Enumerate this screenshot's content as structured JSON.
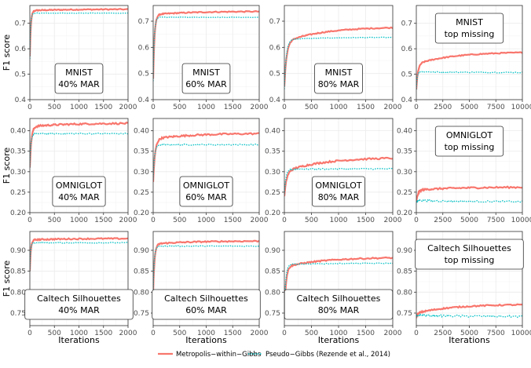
{
  "figure": {
    "ylabel": "F1 score",
    "xlabel": "Iterations",
    "legend": {
      "position": "bottom",
      "entries": [
        {
          "name": "Metropolis−within−Gibbs",
          "color": "#F8766D",
          "style": "solid"
        },
        {
          "name": "Pseudo−Gibbs (Rezende et al., 2014)",
          "color": "#00BFC4",
          "style": "dotted"
        }
      ]
    },
    "colors": {
      "mwg": "#F8766D",
      "pg": "#00BFC4",
      "panel_border": "#333333",
      "grid": "#ebebeb"
    }
  },
  "chart_data": [
    {
      "type": "line",
      "label": [
        "MNIST",
        "40% MAR"
      ],
      "row": 0,
      "col": 0,
      "xlim": [
        0,
        2000
      ],
      "xticks": [
        0,
        500,
        1000,
        1500,
        2000
      ],
      "xticklabels": [
        "0",
        "500",
        "1000",
        "1500",
        "2000"
      ],
      "ylim": [
        0.4,
        0.77
      ],
      "yticks": [
        0.4,
        0.5,
        0.6,
        0.7
      ],
      "yticklabels": [
        "0.4",
        "0.5",
        "0.6",
        "0.7"
      ],
      "series": [
        {
          "name": "Metropolis−within−Gibbs",
          "start": 0.57,
          "plateau": 0.75,
          "final": 0.755,
          "tau": 20,
          "noise": 0.002,
          "steps": 100
        },
        {
          "name": "Pseudo−Gibbs (Rezende et al., 2014)",
          "start": 0.56,
          "plateau": 0.74,
          "final": 0.74,
          "tau": 15,
          "noise": 0.001,
          "steps": 100
        }
      ]
    },
    {
      "type": "line",
      "label": [
        "MNIST",
        "60% MAR"
      ],
      "row": 0,
      "col": 1,
      "xlim": [
        0,
        2000
      ],
      "xticks": [
        0,
        500,
        1000,
        1500,
        2000
      ],
      "xticklabels": [
        "0",
        "500",
        "1000",
        "1500",
        "2000"
      ],
      "ylim": [
        0.4,
        0.76
      ],
      "yticks": [
        0.4,
        0.5,
        0.6,
        0.7
      ],
      "yticklabels": [
        "0.4",
        "0.5",
        "0.6",
        "0.7"
      ],
      "series": [
        {
          "name": "Metropolis−within−Gibbs",
          "start": 0.48,
          "plateau": 0.725,
          "final": 0.737,
          "tau": 25,
          "noise": 0.002,
          "steps": 100
        },
        {
          "name": "Pseudo−Gibbs (Rezende et al., 2014)",
          "start": 0.47,
          "plateau": 0.715,
          "final": 0.715,
          "tau": 20,
          "noise": 0.001,
          "steps": 100
        }
      ]
    },
    {
      "type": "line",
      "label": [
        "MNIST",
        "80% MAR"
      ],
      "row": 0,
      "col": 2,
      "xlim": [
        0,
        2000
      ],
      "xticks": [
        0,
        500,
        1000,
        1500,
        2000
      ],
      "xticklabels": [
        "0",
        "500",
        "1000",
        "1500",
        "2000"
      ],
      "ylim": [
        0.4,
        0.76
      ],
      "yticks": [
        0.4,
        0.5,
        0.6,
        0.7
      ],
      "yticklabels": [
        "0.4",
        "0.5",
        "0.6",
        "0.7"
      ],
      "series": [
        {
          "name": "Metropolis−within−Gibbs",
          "start": 0.45,
          "plateau": 0.62,
          "final": 0.675,
          "tau": 40,
          "noise": 0.002,
          "steps": 100
        },
        {
          "name": "Pseudo−Gibbs (Rezende et al., 2014)",
          "start": 0.44,
          "plateau": 0.63,
          "final": 0.638,
          "tau": 35,
          "noise": 0.001,
          "steps": 100
        }
      ]
    },
    {
      "type": "line",
      "label": [
        "MNIST",
        "top missing"
      ],
      "row": 0,
      "col": 3,
      "xlim": [
        0,
        10000
      ],
      "xticks": [
        0,
        2500,
        5000,
        7500,
        10000
      ],
      "xticklabels": [
        "0",
        "2500",
        "5000",
        "7500",
        "10000"
      ],
      "ylim": [
        0.4,
        0.77
      ],
      "yticks": [
        0.4,
        0.5,
        0.6,
        0.7
      ],
      "yticklabels": [
        "0.4",
        "0.5",
        "0.6",
        "0.7"
      ],
      "series": [
        {
          "name": "Metropolis−within−Gibbs",
          "start": 0.44,
          "plateau": 0.54,
          "final": 0.585,
          "tau": 150,
          "noise": 0.002,
          "steps": 100
        },
        {
          "name": "Pseudo−Gibbs (Rezende et al., 2014)",
          "start": 0.44,
          "plateau": 0.51,
          "final": 0.507,
          "tau": 80,
          "noise": 0.002,
          "steps": 100
        }
      ]
    },
    {
      "type": "line",
      "label": [
        "OMNIGLOT",
        "40% MAR"
      ],
      "row": 1,
      "col": 0,
      "xlim": [
        0,
        2000
      ],
      "xticks": [
        0,
        500,
        1000,
        1500,
        2000
      ],
      "xticklabels": [
        "0",
        "500",
        "1000",
        "1500",
        "2000"
      ],
      "ylim": [
        0.2,
        0.43
      ],
      "yticks": [
        0.2,
        0.25,
        0.3,
        0.35,
        0.4
      ],
      "yticklabels": [
        "0.20",
        "0.25",
        "0.30",
        "0.35",
        "0.40"
      ],
      "series": [
        {
          "name": "Metropolis−within−Gibbs",
          "start": 0.31,
          "plateau": 0.41,
          "final": 0.418,
          "tau": 30,
          "noise": 0.002,
          "steps": 100
        },
        {
          "name": "Pseudo−Gibbs (Rezende et al., 2014)",
          "start": 0.31,
          "plateau": 0.393,
          "final": 0.393,
          "tau": 20,
          "noise": 0.0015,
          "steps": 100
        }
      ]
    },
    {
      "type": "line",
      "label": [
        "OMNIGLOT",
        "60% MAR"
      ],
      "row": 1,
      "col": 1,
      "xlim": [
        0,
        2000
      ],
      "xticks": [
        0,
        500,
        1000,
        1500,
        2000
      ],
      "xticklabels": [
        "0",
        "500",
        "1000",
        "1500",
        "2000"
      ],
      "ylim": [
        0.2,
        0.43
      ],
      "yticks": [
        0.2,
        0.25,
        0.3,
        0.35,
        0.4
      ],
      "yticklabels": [
        "0.20",
        "0.25",
        "0.30",
        "0.35",
        "0.40"
      ],
      "series": [
        {
          "name": "Metropolis−within−Gibbs",
          "start": 0.275,
          "plateau": 0.38,
          "final": 0.393,
          "tau": 35,
          "noise": 0.002,
          "steps": 100
        },
        {
          "name": "Pseudo−Gibbs (Rezende et al., 2014)",
          "start": 0.28,
          "plateau": 0.366,
          "final": 0.366,
          "tau": 25,
          "noise": 0.0015,
          "steps": 100
        }
      ]
    },
    {
      "type": "line",
      "label": [
        "OMNIGLOT",
        "80% MAR"
      ],
      "row": 1,
      "col": 2,
      "xlim": [
        0,
        2000
      ],
      "xticks": [
        0,
        500,
        1000,
        1500,
        2000
      ],
      "xticklabels": [
        "0",
        "500",
        "1000",
        "1500",
        "2000"
      ],
      "ylim": [
        0.2,
        0.43
      ],
      "yticks": [
        0.2,
        0.25,
        0.3,
        0.35,
        0.4
      ],
      "yticklabels": [
        "0.20",
        "0.25",
        "0.30",
        "0.35",
        "0.40"
      ],
      "series": [
        {
          "name": "Metropolis−within−Gibbs",
          "start": 0.24,
          "plateau": 0.3,
          "final": 0.333,
          "tau": 40,
          "noise": 0.002,
          "steps": 100
        },
        {
          "name": "Pseudo−Gibbs (Rezende et al., 2014)",
          "start": 0.245,
          "plateau": 0.306,
          "final": 0.307,
          "tau": 30,
          "noise": 0.0015,
          "steps": 100
        }
      ]
    },
    {
      "type": "line",
      "label": [
        "OMNIGLOT",
        "top missing"
      ],
      "row": 1,
      "col": 3,
      "xlim": [
        0,
        10000
      ],
      "xticks": [
        0,
        2500,
        5000,
        7500,
        10000
      ],
      "xticklabels": [
        "0",
        "2500",
        "5000",
        "7500",
        "10000"
      ],
      "ylim": [
        0.2,
        0.43
      ],
      "yticks": [
        0.2,
        0.25,
        0.3,
        0.35,
        0.4
      ],
      "yticklabels": [
        "0.20",
        "0.25",
        "0.30",
        "0.35",
        "0.40"
      ],
      "series": [
        {
          "name": "Metropolis−within−Gibbs",
          "start": 0.225,
          "plateau": 0.255,
          "final": 0.262,
          "tau": 150,
          "noise": 0.002,
          "steps": 100
        },
        {
          "name": "Pseudo−Gibbs (Rezende et al., 2014)",
          "start": 0.225,
          "plateau": 0.23,
          "final": 0.227,
          "tau": 100,
          "noise": 0.002,
          "steps": 100
        }
      ]
    },
    {
      "type": "line",
      "label": [
        "Caltech Silhouettes",
        "40% MAR"
      ],
      "row": 2,
      "col": 0,
      "xlim": [
        0,
        2000
      ],
      "xticks": [
        0,
        500,
        1000,
        1500,
        2000
      ],
      "xticklabels": [
        "0",
        "500",
        "1000",
        "1500",
        "2000"
      ],
      "ylim": [
        0.72,
        0.945
      ],
      "yticks": [
        0.75,
        0.8,
        0.85,
        0.9
      ],
      "yticklabels": [
        "0.75",
        "0.80",
        "0.85",
        "0.90"
      ],
      "series": [
        {
          "name": "Metropolis−within−Gibbs",
          "start": 0.85,
          "plateau": 0.925,
          "final": 0.928,
          "tau": 20,
          "noise": 0.0015,
          "steps": 100
        },
        {
          "name": "Pseudo−Gibbs (Rezende et al., 2014)",
          "start": 0.85,
          "plateau": 0.918,
          "final": 0.918,
          "tau": 15,
          "noise": 0.001,
          "steps": 100
        }
      ]
    },
    {
      "type": "line",
      "label": [
        "Caltech Silhouettes",
        "60% MAR"
      ],
      "row": 2,
      "col": 1,
      "xlim": [
        0,
        2000
      ],
      "xticks": [
        0,
        500,
        1000,
        1500,
        2000
      ],
      "xticklabels": [
        "0",
        "500",
        "1000",
        "1500",
        "2000"
      ],
      "ylim": [
        0.72,
        0.945
      ],
      "yticks": [
        0.75,
        0.8,
        0.85,
        0.9
      ],
      "yticklabels": [
        "0.75",
        "0.80",
        "0.85",
        "0.90"
      ],
      "series": [
        {
          "name": "Metropolis−within−Gibbs",
          "start": 0.8,
          "plateau": 0.915,
          "final": 0.922,
          "tau": 25,
          "noise": 0.0015,
          "steps": 100
        },
        {
          "name": "Pseudo−Gibbs (Rezende et al., 2014)",
          "start": 0.8,
          "plateau": 0.91,
          "final": 0.91,
          "tau": 20,
          "noise": 0.001,
          "steps": 100
        }
      ]
    },
    {
      "type": "line",
      "label": [
        "Caltech Silhouettes",
        "80% MAR"
      ],
      "row": 2,
      "col": 2,
      "xlim": [
        0,
        2000
      ],
      "xticks": [
        0,
        500,
        1000,
        1500,
        2000
      ],
      "xticklabels": [
        "0",
        "500",
        "1000",
        "1500",
        "2000"
      ],
      "ylim": [
        0.72,
        0.945
      ],
      "yticks": [
        0.75,
        0.8,
        0.85,
        0.9
      ],
      "yticklabels": [
        "0.75",
        "0.80",
        "0.85",
        "0.90"
      ],
      "series": [
        {
          "name": "Metropolis−within−Gibbs",
          "start": 0.75,
          "plateau": 0.86,
          "final": 0.882,
          "tau": 30,
          "noise": 0.0015,
          "steps": 100
        },
        {
          "name": "Pseudo−Gibbs (Rezende et al., 2014)",
          "start": 0.75,
          "plateau": 0.866,
          "final": 0.869,
          "tau": 25,
          "noise": 0.001,
          "steps": 100
        }
      ]
    },
    {
      "type": "line",
      "label": [
        "Caltech Silhouettes",
        "top missing"
      ],
      "row": 2,
      "col": 3,
      "xlim": [
        0,
        10000
      ],
      "xticks": [
        0,
        2500,
        5000,
        7500,
        10000
      ],
      "xticklabels": [
        "0",
        "2500",
        "5000",
        "7500",
        "10000"
      ],
      "ylim": [
        0.72,
        0.945
      ],
      "yticks": [
        0.75,
        0.8,
        0.85,
        0.9
      ],
      "yticklabels": [
        "0.75",
        "0.80",
        "0.85",
        "0.90"
      ],
      "series": [
        {
          "name": "Metropolis−within−Gibbs",
          "start": 0.74,
          "plateau": 0.75,
          "final": 0.77,
          "tau": 150,
          "noise": 0.0015,
          "steps": 100
        },
        {
          "name": "Pseudo−Gibbs (Rezende et al., 2014)",
          "start": 0.74,
          "plateau": 0.745,
          "final": 0.742,
          "tau": 100,
          "noise": 0.0025,
          "steps": 100
        }
      ]
    }
  ]
}
